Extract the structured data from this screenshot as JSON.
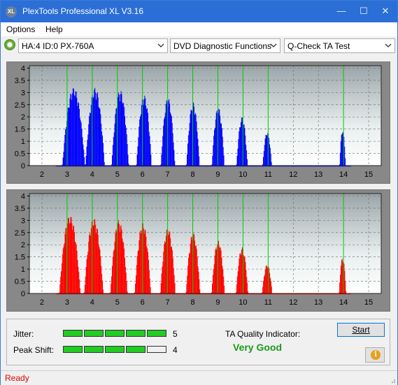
{
  "window": {
    "title": "PlexTools Professional XL V3.16",
    "icon_text": "XL",
    "minimize": "—",
    "maximize": "☐",
    "close": "✕"
  },
  "menu": {
    "options": "Options",
    "help": "Help"
  },
  "toolbar": {
    "drive": "HA:4 ID:0  PX-760A",
    "function": "DVD Diagnostic Functions",
    "test": "Q-Check TA Test"
  },
  "chart_data": [
    {
      "type": "bar",
      "name": "top-chart",
      "x_ticks": [
        2,
        3,
        4,
        5,
        6,
        7,
        8,
        9,
        10,
        11,
        12,
        13,
        14,
        15
      ],
      "y_ticks": [
        0,
        0.5,
        1,
        1.5,
        2,
        2.5,
        3,
        3.5,
        4
      ],
      "y_tick_labels": [
        "0",
        "0.5",
        "1",
        "1.5",
        "2",
        "2.5",
        "3",
        "3.5",
        "4"
      ],
      "xlim": [
        1.5,
        15.5
      ],
      "ylim": [
        0,
        4.1
      ],
      "color": "#0000ff",
      "marker_lines": [
        3,
        4,
        5,
        6,
        7,
        8,
        9,
        10,
        11,
        14
      ],
      "peaks": [
        {
          "x": 3.25,
          "height": 3.2,
          "width": 0.45
        },
        {
          "x": 4.1,
          "height": 3.2,
          "width": 0.38
        },
        {
          "x": 5.1,
          "height": 3.1,
          "width": 0.34
        },
        {
          "x": 6.05,
          "height": 2.9,
          "width": 0.3
        },
        {
          "x": 7.0,
          "height": 2.8,
          "width": 0.28
        },
        {
          "x": 8.0,
          "height": 2.6,
          "width": 0.26
        },
        {
          "x": 9.0,
          "height": 2.4,
          "width": 0.25
        },
        {
          "x": 9.95,
          "height": 2.0,
          "width": 0.22
        },
        {
          "x": 10.95,
          "height": 1.4,
          "width": 0.18
        },
        {
          "x": 13.95,
          "height": 1.5,
          "width": 0.12
        }
      ]
    },
    {
      "type": "bar",
      "name": "bottom-chart",
      "x_ticks": [
        2,
        3,
        4,
        5,
        6,
        7,
        8,
        9,
        10,
        11,
        12,
        13,
        14,
        15
      ],
      "y_ticks": [
        0,
        0.5,
        1,
        1.5,
        2,
        2.5,
        3,
        3.5,
        4
      ],
      "y_tick_labels": [
        "0",
        "0.5",
        "1",
        "1.5",
        "2",
        "2.5",
        "3",
        "3.5",
        "4"
      ],
      "xlim": [
        1.5,
        15.5
      ],
      "ylim": [
        0,
        4.1
      ],
      "color": "#ff0000",
      "marker_lines": [
        3,
        4,
        5,
        6,
        7,
        8,
        9,
        10,
        11,
        14
      ],
      "peaks": [
        {
          "x": 3.1,
          "height": 3.2,
          "width": 0.42
        },
        {
          "x": 4.05,
          "height": 3.1,
          "width": 0.38
        },
        {
          "x": 5.05,
          "height": 3.0,
          "width": 0.34
        },
        {
          "x": 6.0,
          "height": 2.9,
          "width": 0.32
        },
        {
          "x": 7.0,
          "height": 2.7,
          "width": 0.3
        },
        {
          "x": 8.0,
          "height": 2.5,
          "width": 0.28
        },
        {
          "x": 9.0,
          "height": 2.2,
          "width": 0.26
        },
        {
          "x": 9.95,
          "height": 1.9,
          "width": 0.24
        },
        {
          "x": 10.95,
          "height": 1.2,
          "width": 0.2
        },
        {
          "x": 13.95,
          "height": 1.5,
          "width": 0.14
        }
      ]
    }
  ],
  "quality": {
    "jitter_label": "Jitter:",
    "jitter_value": "5",
    "jitter_level": 5,
    "peak_label": "Peak Shift:",
    "peak_value": "4",
    "peak_level": 4,
    "max_level": 5,
    "ta_label": "TA Quality Indicator:",
    "ta_value": "Very Good",
    "ta_color": "#1a9a1a",
    "start_label": "Start",
    "info_icon": "i"
  },
  "status": {
    "text": "Ready"
  }
}
